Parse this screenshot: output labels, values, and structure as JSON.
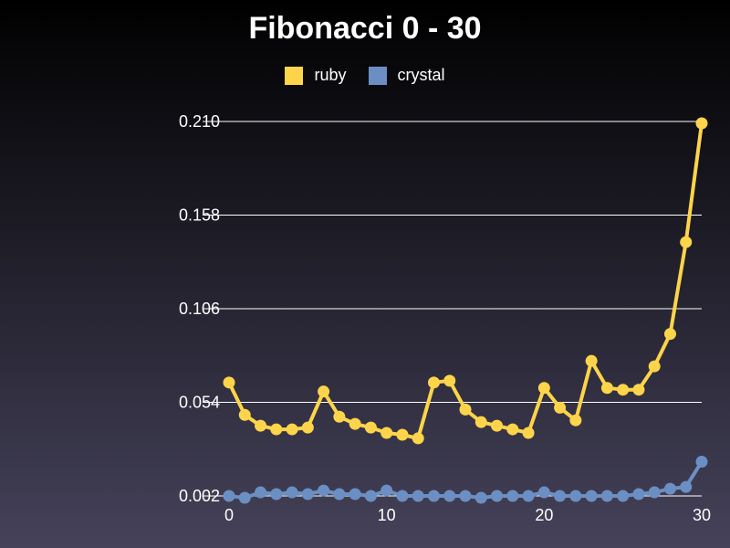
{
  "chart_data": {
    "type": "line",
    "title": "Fibonacci 0 - 30",
    "xlabel": "",
    "ylabel": "",
    "x": [
      0,
      1,
      2,
      3,
      4,
      5,
      6,
      7,
      8,
      9,
      10,
      11,
      12,
      13,
      14,
      15,
      16,
      17,
      18,
      19,
      20,
      21,
      22,
      23,
      24,
      25,
      26,
      27,
      28,
      29,
      30
    ],
    "xlim": [
      0,
      30
    ],
    "ylim": [
      0.002,
      0.21
    ],
    "x_ticks": [
      "0",
      "10",
      "20",
      "30"
    ],
    "y_ticks": [
      "0.002",
      "0.054",
      "0.106",
      "0.158",
      "0.210"
    ],
    "grid": true,
    "legend_position": "top-center",
    "series": [
      {
        "name": "ruby",
        "color": "#fdd44a",
        "values": [
          0.065,
          0.047,
          0.041,
          0.039,
          0.039,
          0.04,
          0.06,
          0.046,
          0.042,
          0.04,
          0.037,
          0.036,
          0.034,
          0.065,
          0.066,
          0.05,
          0.043,
          0.041,
          0.039,
          0.037,
          0.062,
          0.051,
          0.044,
          0.077,
          0.062,
          0.061,
          0.061,
          0.074,
          0.092,
          0.143,
          0.209
        ]
      },
      {
        "name": "crystal",
        "color": "#6b8fc3",
        "values": [
          0.002,
          0.001,
          0.004,
          0.003,
          0.004,
          0.003,
          0.005,
          0.003,
          0.003,
          0.002,
          0.005,
          0.002,
          0.002,
          0.002,
          0.002,
          0.002,
          0.001,
          0.002,
          0.002,
          0.002,
          0.004,
          0.002,
          0.002,
          0.002,
          0.002,
          0.002,
          0.003,
          0.004,
          0.006,
          0.007,
          0.021
        ]
      }
    ]
  }
}
